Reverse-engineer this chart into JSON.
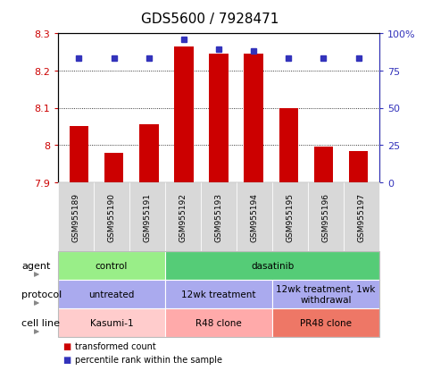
{
  "title": "GDS5600 / 7928471",
  "samples": [
    "GSM955189",
    "GSM955190",
    "GSM955191",
    "GSM955192",
    "GSM955193",
    "GSM955194",
    "GSM955195",
    "GSM955196",
    "GSM955197"
  ],
  "transformed_counts": [
    8.05,
    7.98,
    8.055,
    8.265,
    8.245,
    8.245,
    8.1,
    7.995,
    7.985
  ],
  "percentile_ranks": [
    83,
    83,
    83,
    96,
    89,
    88,
    83,
    83,
    83
  ],
  "ymin": 7.9,
  "ymax": 8.3,
  "yticks": [
    7.9,
    8.0,
    8.1,
    8.2,
    8.3
  ],
  "ytick_labels": [
    "7.9",
    "8",
    "8.1",
    "8.2",
    "8.3"
  ],
  "y2ticks": [
    0,
    25,
    50,
    75,
    100
  ],
  "y2tick_labels": [
    "0",
    "25",
    "50",
    "75",
    "100%"
  ],
  "bar_color": "#cc0000",
  "dot_color": "#3333bb",
  "agent_labels": [
    {
      "text": "control",
      "start": 0,
      "end": 3,
      "color": "#99ee88"
    },
    {
      "text": "dasatinib",
      "start": 3,
      "end": 9,
      "color": "#55cc77"
    }
  ],
  "protocol_labels": [
    {
      "text": "untreated",
      "start": 0,
      "end": 3,
      "color": "#aaaaee"
    },
    {
      "text": "12wk treatment",
      "start": 3,
      "end": 6,
      "color": "#aaaaee"
    },
    {
      "text": "12wk treatment, 1wk\nwithdrawal",
      "start": 6,
      "end": 9,
      "color": "#aaaaee"
    }
  ],
  "cellline_labels": [
    {
      "text": "Kasumi-1",
      "start": 0,
      "end": 3,
      "color": "#ffcccc"
    },
    {
      "text": "R48 clone",
      "start": 3,
      "end": 6,
      "color": "#ffaaaa"
    },
    {
      "text": "PR48 clone",
      "start": 6,
      "end": 9,
      "color": "#ee7766"
    }
  ],
  "legend_items": [
    {
      "label": "transformed count",
      "color": "#cc0000"
    },
    {
      "label": "percentile rank within the sample",
      "color": "#3333bb"
    }
  ],
  "bg_color": "#d8d8d8",
  "chart_bg": "#ffffff"
}
